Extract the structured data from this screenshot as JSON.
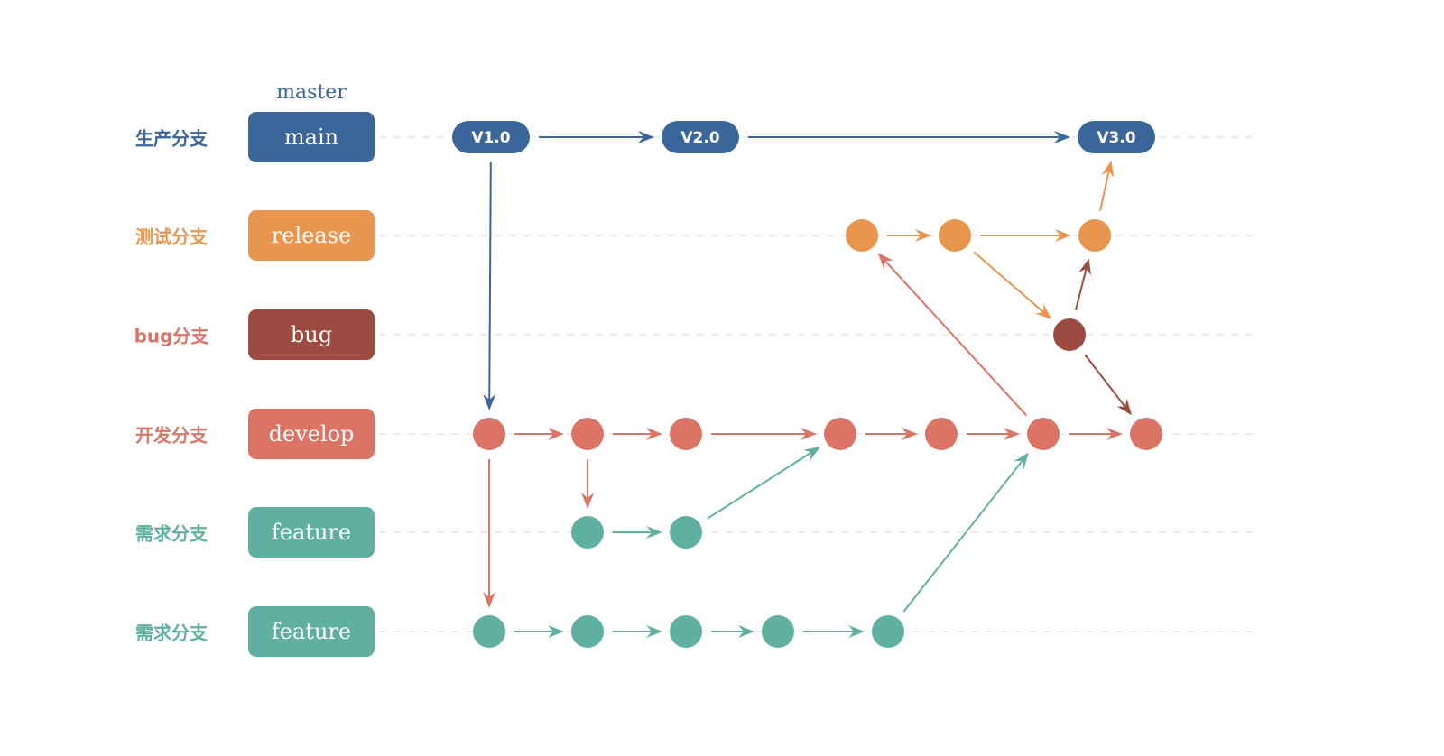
{
  "master_label": "master",
  "lanes": [
    {
      "id": "main",
      "label": "生产分支",
      "branch": "main",
      "color": "#3a6699"
    },
    {
      "id": "release",
      "label": "测试分支",
      "branch": "release",
      "color": "#e8954f"
    },
    {
      "id": "bug",
      "label": "bug分支",
      "branch": "bug",
      "color": "#9c4b40"
    },
    {
      "id": "develop",
      "label": "开发分支",
      "branch": "develop",
      "color": "#dc7466"
    },
    {
      "id": "feature1",
      "label": "需求分支",
      "branch": "feature",
      "color": "#5fb0a0"
    },
    {
      "id": "feature2",
      "label": "需求分支",
      "branch": "feature",
      "color": "#5fb0a0"
    }
  ],
  "label_colors": {
    "main": "#3a6699",
    "release": "#e8954f",
    "bug": "#d9756a",
    "develop": "#d9756a",
    "feature1": "#5fb0a0",
    "feature2": "#5fb0a0"
  },
  "nodes": [
    {
      "id": "V1",
      "lane": "main",
      "label": "V1.0"
    },
    {
      "id": "V2",
      "lane": "main",
      "label": "V2.0"
    },
    {
      "id": "V3",
      "lane": "main",
      "label": "V3.0"
    },
    {
      "id": "r1",
      "lane": "release"
    },
    {
      "id": "r2",
      "lane": "release"
    },
    {
      "id": "r3",
      "lane": "release"
    },
    {
      "id": "b1",
      "lane": "bug"
    },
    {
      "id": "d1",
      "lane": "develop"
    },
    {
      "id": "d2",
      "lane": "develop"
    },
    {
      "id": "d3",
      "lane": "develop"
    },
    {
      "id": "d4",
      "lane": "develop"
    },
    {
      "id": "d5",
      "lane": "develop"
    },
    {
      "id": "d6",
      "lane": "develop"
    },
    {
      "id": "d7",
      "lane": "develop"
    },
    {
      "id": "f1",
      "lane": "feature1"
    },
    {
      "id": "f2",
      "lane": "feature1"
    },
    {
      "id": "g1",
      "lane": "feature2"
    },
    {
      "id": "g2",
      "lane": "feature2"
    },
    {
      "id": "g3",
      "lane": "feature2"
    },
    {
      "id": "g4",
      "lane": "feature2"
    },
    {
      "id": "g5",
      "lane": "feature2"
    }
  ],
  "edges": [
    [
      "V1",
      "V2"
    ],
    [
      "V2",
      "V3"
    ],
    [
      "V1",
      "d1"
    ],
    [
      "d1",
      "d2"
    ],
    [
      "d2",
      "d3"
    ],
    [
      "d3",
      "d4"
    ],
    [
      "d4",
      "d5"
    ],
    [
      "d5",
      "d6"
    ],
    [
      "d6",
      "d7"
    ],
    [
      "d2",
      "f1"
    ],
    [
      "f1",
      "f2"
    ],
    [
      "f2",
      "d4"
    ],
    [
      "d1",
      "g1"
    ],
    [
      "g1",
      "g2"
    ],
    [
      "g2",
      "g3"
    ],
    [
      "g3",
      "g4"
    ],
    [
      "g4",
      "g5"
    ],
    [
      "g5",
      "d6"
    ],
    [
      "d6",
      "r1"
    ],
    [
      "r1",
      "r2"
    ],
    [
      "r2",
      "r3"
    ],
    [
      "r2",
      "b1"
    ],
    [
      "b1",
      "r3"
    ],
    [
      "b1",
      "d7"
    ],
    [
      "r3",
      "V3"
    ]
  ]
}
